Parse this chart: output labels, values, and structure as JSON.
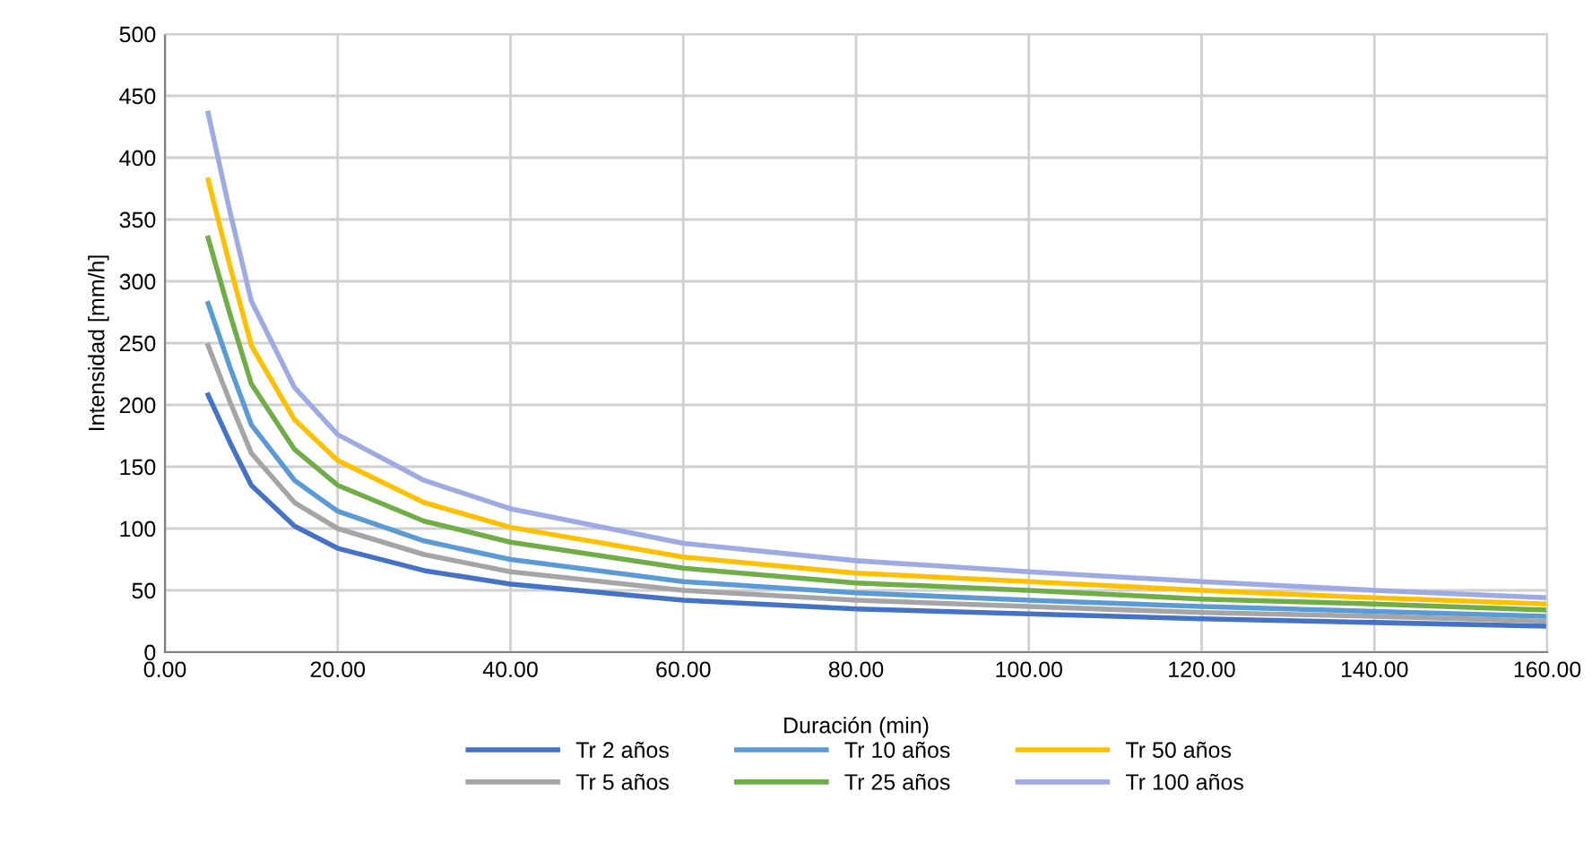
{
  "chart_data": {
    "type": "line",
    "xlabel": "Duración (min)",
    "ylabel": "Intensidad [mm/h]",
    "x": [
      5,
      7.5,
      10,
      15,
      20,
      30,
      40,
      60,
      80,
      100,
      120,
      140,
      160
    ],
    "series": [
      {
        "name": "Tr 2 años",
        "color": "#4472c4",
        "values": [
          208,
          170,
          135,
          102,
          84,
          66,
          55,
          42,
          35,
          31,
          27,
          24,
          21
        ]
      },
      {
        "name": "Tr 5 años",
        "color": "#a5a5a5",
        "values": [
          248,
          203,
          161,
          121,
          100,
          79,
          65,
          50,
          42,
          37,
          32,
          29,
          25
        ]
      },
      {
        "name": "Tr 10 años",
        "color": "#5b9bd5",
        "values": [
          282,
          231,
          184,
          139,
          114,
          90,
          75,
          57,
          48,
          42,
          37,
          33,
          29
        ]
      },
      {
        "name": "Tr 25 años",
        "color": "#70ad47",
        "values": [
          335,
          274,
          217,
          164,
          135,
          106,
          89,
          68,
          56,
          50,
          43,
          39,
          34
        ]
      },
      {
        "name": "Tr 50 años",
        "color": "#ffc000",
        "values": [
          382,
          313,
          248,
          188,
          155,
          121,
          101,
          77,
          64,
          57,
          50,
          44,
          39
        ]
      },
      {
        "name": "Tr 100 años",
        "color": "#9dabe2",
        "values": [
          436,
          357,
          284,
          214,
          176,
          139,
          116,
          88,
          74,
          65,
          57,
          50,
          44
        ]
      }
    ],
    "xlim": [
      0,
      160
    ],
    "ylim": [
      0,
      500
    ],
    "xticks": [
      {
        "value": 0,
        "label": "0.00"
      },
      {
        "value": 20,
        "label": "20.00"
      },
      {
        "value": 40,
        "label": "40.00"
      },
      {
        "value": 60,
        "label": "60.00"
      },
      {
        "value": 80,
        "label": "80.00"
      },
      {
        "value": 100,
        "label": "100.00"
      },
      {
        "value": 120,
        "label": "120.00"
      },
      {
        "value": 140,
        "label": "140.00"
      },
      {
        "value": 160,
        "label": "160.00"
      }
    ],
    "yticks": [
      0,
      50,
      100,
      150,
      200,
      250,
      300,
      350,
      400,
      450,
      500
    ],
    "grid": true,
    "legend": "bottom",
    "marker": "none",
    "line_style": "solid"
  }
}
